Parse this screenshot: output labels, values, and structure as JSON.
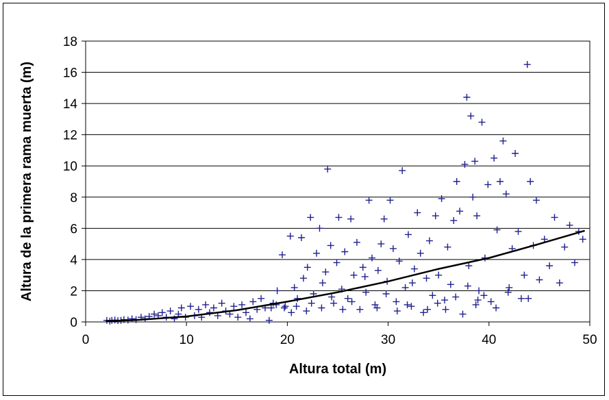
{
  "chart_data": {
    "type": "scatter",
    "title": "",
    "xlabel": "Altura total (m)",
    "ylabel": "Altura de la primera rama muerta (m)",
    "xlim": [
      0,
      50
    ],
    "ylim": [
      0,
      18
    ],
    "x_ticks": [
      0,
      10,
      20,
      30,
      40,
      50
    ],
    "y_ticks": [
      0,
      2,
      4,
      6,
      8,
      10,
      12,
      14,
      16,
      18
    ],
    "grid": "horizontal",
    "legend": "none",
    "colors": {
      "points": "#1f1f8f",
      "trend": "#000000",
      "grid": "#000000"
    },
    "series": [
      {
        "kind": "points",
        "marker": "plus",
        "points": [
          [
            2.1,
            0.1
          ],
          [
            2.4,
            0.05
          ],
          [
            2.6,
            0.1
          ],
          [
            2.9,
            0.12
          ],
          [
            3.2,
            0.08
          ],
          [
            3.5,
            0.1
          ],
          [
            3.8,
            0.15
          ],
          [
            4.2,
            0.12
          ],
          [
            4.6,
            0.2
          ],
          [
            5.0,
            0.15
          ],
          [
            5.5,
            0.3
          ],
          [
            5.9,
            0.2
          ],
          [
            6.3,
            0.35
          ],
          [
            6.8,
            0.5
          ],
          [
            7.2,
            0.4
          ],
          [
            7.6,
            0.6
          ],
          [
            8.0,
            0.3
          ],
          [
            8.4,
            0.7
          ],
          [
            8.8,
            0.2
          ],
          [
            9.2,
            0.5
          ],
          [
            9.5,
            0.9
          ],
          [
            9.9,
            0.3
          ],
          [
            10.4,
            1.0
          ],
          [
            10.8,
            0.4
          ],
          [
            11.2,
            0.8
          ],
          [
            11.5,
            0.3
          ],
          [
            11.9,
            1.1
          ],
          [
            12.3,
            0.6
          ],
          [
            12.7,
            0.9
          ],
          [
            13.1,
            0.4
          ],
          [
            13.5,
            1.2
          ],
          [
            13.9,
            0.7
          ],
          [
            14.3,
            0.5
          ],
          [
            14.7,
            1.0
          ],
          [
            15.1,
            0.3
          ],
          [
            15.5,
            1.1
          ],
          [
            15.9,
            0.6
          ],
          [
            16.3,
            0.2
          ],
          [
            16.6,
            1.3
          ],
          [
            17.0,
            0.8
          ],
          [
            17.4,
            1.5
          ],
          [
            17.8,
            0.9
          ],
          [
            18.2,
            0.1
          ],
          [
            18.6,
            1.2
          ],
          [
            19.0,
            2.0
          ],
          [
            19.5,
            4.3
          ],
          [
            19.8,
            1.0
          ],
          [
            20.3,
            5.5
          ],
          [
            20.7,
            2.2
          ],
          [
            21.0,
            1.5
          ],
          [
            21.4,
            5.4
          ],
          [
            21.6,
            2.8
          ],
          [
            22.0,
            3.5
          ],
          [
            22.3,
            6.7
          ],
          [
            22.6,
            1.8
          ],
          [
            22.9,
            4.4
          ],
          [
            23.2,
            6.0
          ],
          [
            23.5,
            2.5
          ],
          [
            23.8,
            3.2
          ],
          [
            24.0,
            9.8
          ],
          [
            24.3,
            4.9
          ],
          [
            24.6,
            1.2
          ],
          [
            24.9,
            3.8
          ],
          [
            25.1,
            6.7
          ],
          [
            25.4,
            2.1
          ],
          [
            25.7,
            4.5
          ],
          [
            26.0,
            1.5
          ],
          [
            26.3,
            6.6
          ],
          [
            26.6,
            3.0
          ],
          [
            26.9,
            5.1
          ],
          [
            27.2,
            0.8
          ],
          [
            27.5,
            3.5
          ],
          [
            27.8,
            1.9
          ],
          [
            28.1,
            7.8
          ],
          [
            28.4,
            4.1
          ],
          [
            28.7,
            1.1
          ],
          [
            29.0,
            3.3
          ],
          [
            29.3,
            5.0
          ],
          [
            29.6,
            6.6
          ],
          [
            29.9,
            2.6
          ],
          [
            30.2,
            7.8
          ],
          [
            30.5,
            4.7
          ],
          [
            30.8,
            1.3
          ],
          [
            31.1,
            3.9
          ],
          [
            31.4,
            9.7
          ],
          [
            31.7,
            2.2
          ],
          [
            32.0,
            5.6
          ],
          [
            32.3,
            1.0
          ],
          [
            32.6,
            3.4
          ],
          [
            32.9,
            7.0
          ],
          [
            33.2,
            4.4
          ],
          [
            33.5,
            0.6
          ],
          [
            33.8,
            2.8
          ],
          [
            34.1,
            5.2
          ],
          [
            34.4,
            1.7
          ],
          [
            34.7,
            6.8
          ],
          [
            35.0,
            3.0
          ],
          [
            35.3,
            7.9
          ],
          [
            35.6,
            1.4
          ],
          [
            35.9,
            4.8
          ],
          [
            36.2,
            2.4
          ],
          [
            36.5,
            6.5
          ],
          [
            36.8,
            9.0
          ],
          [
            37.1,
            7.1
          ],
          [
            37.4,
            0.5
          ],
          [
            37.6,
            10.1
          ],
          [
            37.8,
            14.4
          ],
          [
            38.0,
            3.6
          ],
          [
            38.2,
            13.2
          ],
          [
            38.4,
            8.0
          ],
          [
            38.6,
            10.3
          ],
          [
            38.8,
            6.8
          ],
          [
            39.0,
            2.0
          ],
          [
            39.3,
            12.8
          ],
          [
            39.6,
            4.1
          ],
          [
            39.9,
            8.8
          ],
          [
            40.2,
            1.3
          ],
          [
            40.5,
            10.5
          ],
          [
            40.8,
            5.9
          ],
          [
            41.1,
            9.0
          ],
          [
            41.4,
            11.6
          ],
          [
            41.7,
            8.2
          ],
          [
            42.0,
            2.2
          ],
          [
            42.3,
            4.7
          ],
          [
            42.6,
            10.8
          ],
          [
            42.9,
            5.8
          ],
          [
            43.2,
            1.5
          ],
          [
            43.5,
            3.0
          ],
          [
            43.8,
            16.5
          ],
          [
            44.1,
            9.0
          ],
          [
            44.4,
            4.9
          ],
          [
            44.7,
            7.8
          ],
          [
            45.0,
            2.7
          ],
          [
            45.5,
            5.3
          ],
          [
            46.0,
            3.6
          ],
          [
            46.5,
            6.7
          ],
          [
            47.0,
            2.5
          ],
          [
            47.5,
            4.8
          ],
          [
            48.0,
            6.2
          ],
          [
            48.5,
            3.8
          ],
          [
            49.3,
            5.3
          ],
          [
            48.9,
            5.8
          ],
          [
            26.4,
            1.3
          ],
          [
            28.9,
            0.9
          ],
          [
            31.9,
            1.1
          ],
          [
            33.9,
            0.8
          ],
          [
            36.7,
            1.6
          ],
          [
            38.7,
            1.1
          ],
          [
            40.7,
            0.9
          ],
          [
            39.5,
            1.7
          ],
          [
            27.7,
            2.9
          ],
          [
            29.8,
            1.8
          ],
          [
            30.9,
            0.7
          ],
          [
            32.4,
            2.5
          ],
          [
            34.9,
            1.2
          ],
          [
            35.7,
            0.8
          ],
          [
            37.9,
            2.3
          ],
          [
            38.9,
            1.4
          ],
          [
            41.9,
            1.9
          ],
          [
            43.9,
            1.5
          ],
          [
            25.5,
            0.8
          ],
          [
            24.4,
            1.6
          ],
          [
            23.4,
            0.9
          ],
          [
            22.4,
            1.2
          ],
          [
            21.9,
            0.7
          ],
          [
            20.9,
            1.0
          ],
          [
            20.4,
            0.6
          ],
          [
            19.7,
            0.9
          ],
          [
            18.9,
            1.1
          ],
          [
            18.4,
            0.9
          ]
        ]
      },
      {
        "kind": "trend",
        "points": [
          [
            2.0,
            0.05
          ],
          [
            5,
            0.12
          ],
          [
            10,
            0.35
          ],
          [
            15,
            0.75
          ],
          [
            20,
            1.3
          ],
          [
            25,
            1.9
          ],
          [
            30,
            2.6
          ],
          [
            35,
            3.4
          ],
          [
            40,
            4.1
          ],
          [
            45,
            5.0
          ],
          [
            49.5,
            5.85
          ]
        ]
      }
    ]
  }
}
